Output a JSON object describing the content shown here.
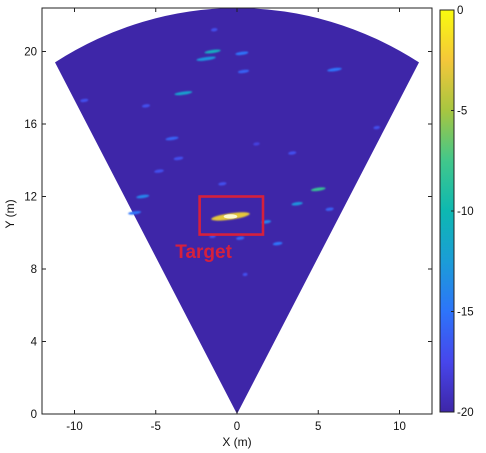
{
  "chart_data": {
    "type": "heatmap",
    "subtype": "radar-sector-image",
    "title": "",
    "xlabel": "X (m)",
    "ylabel": "Y (m)",
    "xlim": [
      -12,
      12
    ],
    "ylim": [
      0,
      22.4
    ],
    "x_ticks": [
      -10,
      -5,
      0,
      5,
      10
    ],
    "y_ticks": [
      0,
      4,
      8,
      12,
      16,
      20
    ],
    "grid": false,
    "sector": {
      "apex": [
        0,
        0
      ],
      "radius": 22.4,
      "half_angle_deg": 30
    },
    "background_level_db": -20,
    "colorbar": {
      "min": -20,
      "max": 0,
      "ticks": [
        0,
        -5,
        -10,
        -15,
        -20
      ],
      "colormap": "parula"
    },
    "reflections": [
      {
        "x": -1.9,
        "y": 19.6,
        "len": 1.2,
        "level": -13
      },
      {
        "x": -1.5,
        "y": 20.0,
        "len": 1.0,
        "level": -11
      },
      {
        "x": 0.3,
        "y": 19.9,
        "len": 0.8,
        "level": -15
      },
      {
        "x": -1.4,
        "y": 21.2,
        "len": 0.4,
        "level": -17
      },
      {
        "x": 0.4,
        "y": 18.9,
        "len": 0.7,
        "level": -16
      },
      {
        "x": -3.3,
        "y": 17.7,
        "len": 1.1,
        "level": -12
      },
      {
        "x": 6.0,
        "y": 19.0,
        "len": 0.9,
        "level": -15
      },
      {
        "x": -9.4,
        "y": 17.3,
        "len": 0.5,
        "level": -17
      },
      {
        "x": -5.6,
        "y": 17.0,
        "len": 0.5,
        "level": -17
      },
      {
        "x": -4.0,
        "y": 15.2,
        "len": 0.8,
        "level": -16
      },
      {
        "x": 8.6,
        "y": 15.8,
        "len": 0.4,
        "level": -17
      },
      {
        "x": -3.6,
        "y": 14.1,
        "len": 0.6,
        "level": -17
      },
      {
        "x": -4.8,
        "y": 13.4,
        "len": 0.6,
        "level": -17
      },
      {
        "x": 3.4,
        "y": 14.4,
        "len": 0.5,
        "level": -17
      },
      {
        "x": 1.2,
        "y": 14.9,
        "len": 0.4,
        "level": -18
      },
      {
        "x": -5.8,
        "y": 12.0,
        "len": 0.8,
        "level": -14
      },
      {
        "x": -6.3,
        "y": 11.1,
        "len": 0.8,
        "level": -15
      },
      {
        "x": 5.0,
        "y": 12.4,
        "len": 0.9,
        "level": -8
      },
      {
        "x": 3.7,
        "y": 11.6,
        "len": 0.7,
        "level": -13
      },
      {
        "x": 5.7,
        "y": 11.3,
        "len": 0.5,
        "level": -16
      },
      {
        "x": -0.9,
        "y": 12.7,
        "len": 0.5,
        "level": -17
      },
      {
        "x": -0.4,
        "y": 10.9,
        "len": 2.4,
        "level": -3
      },
      {
        "x": 1.8,
        "y": 10.6,
        "len": 0.6,
        "level": -14
      },
      {
        "x": 0.2,
        "y": 9.7,
        "len": 0.5,
        "level": -16
      },
      {
        "x": 2.5,
        "y": 9.4,
        "len": 0.6,
        "level": -15
      },
      {
        "x": -1.5,
        "y": 9.8,
        "len": 0.4,
        "level": -17
      },
      {
        "x": 0.5,
        "y": 7.7,
        "len": 0.3,
        "level": -17
      }
    ],
    "annotations": [
      {
        "text": "Target",
        "x": -3.8,
        "y": 8.6,
        "color": "#d6203c"
      }
    ],
    "highlight_box": {
      "x0": -2.3,
      "x1": 1.6,
      "y0": 9.9,
      "y1": 12.0,
      "color": "#d6203c"
    }
  }
}
